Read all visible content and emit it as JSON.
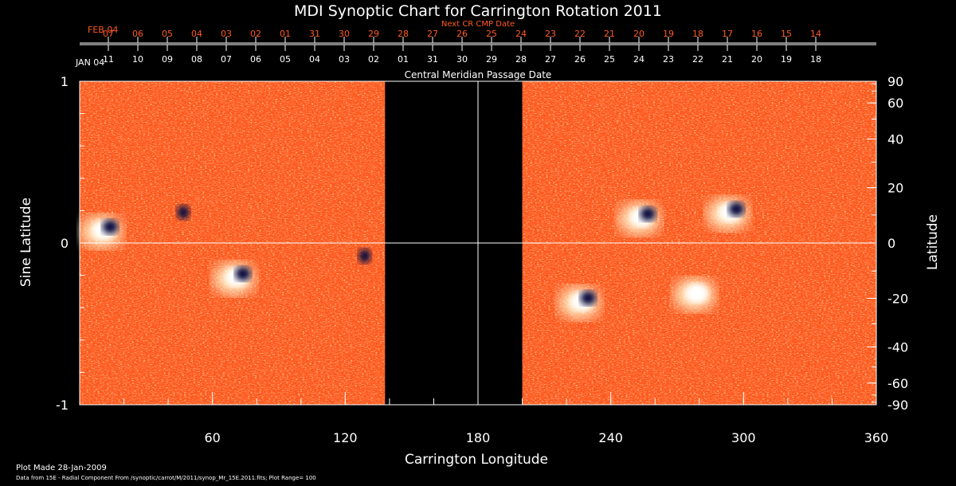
{
  "chart_data": {
    "type": "heatmap",
    "title": "MDI Synoptic Chart for Carrington Rotation 2011",
    "xlabel": "Carrington Longitude",
    "ylabel_left": "Sine Latitude",
    "ylabel_right": "Latitude",
    "xlim": [
      0,
      360
    ],
    "ylim": [
      -1,
      1
    ],
    "x_ticks": [
      60,
      120,
      180,
      240,
      300,
      360
    ],
    "y_ticks_left": [
      -1,
      0,
      1
    ],
    "y_ticks_right": [
      90,
      60,
      40,
      20,
      0,
      -20,
      -40,
      -60,
      -90
    ],
    "x_minor_ticks": [
      20,
      40,
      60,
      80,
      100,
      120,
      140,
      160,
      180,
      200,
      220,
      240,
      260,
      280,
      300,
      320,
      340,
      360
    ],
    "gridlines": {
      "x": [
        180
      ],
      "y": [
        0
      ]
    },
    "data_gaps": [
      {
        "from": 138,
        "to": 200
      }
    ],
    "colors": {
      "background": "#ff5a1f",
      "positive": "#fff6d0",
      "negative": "#101040"
    },
    "active_regions": [
      {
        "lon": 12,
        "sinlat": 0.09,
        "polarity": "mixed"
      },
      {
        "lon": 45,
        "sinlat": 0.18,
        "polarity": "negative"
      },
      {
        "lon": 72,
        "sinlat": -0.2,
        "polarity": "mixed"
      },
      {
        "lon": 127,
        "sinlat": -0.09,
        "polarity": "negative"
      },
      {
        "lon": 255,
        "sinlat": 0.17,
        "polarity": "mixed"
      },
      {
        "lon": 295,
        "sinlat": 0.2,
        "polarity": "mixed"
      },
      {
        "lon": 280,
        "sinlat": -0.3,
        "polarity": "positive"
      },
      {
        "lon": 228,
        "sinlat": -0.35,
        "polarity": "mixed"
      }
    ],
    "top_axis_label": "Central Meridian Passage Date",
    "next_cr_label": "Next CR CMP Date",
    "cmp_dates": {
      "start_label": "JAN 04",
      "days": [
        "11",
        "10",
        "09",
        "08",
        "07",
        "06",
        "05",
        "04",
        "03",
        "02",
        "01",
        "31",
        "30",
        "29",
        "28",
        "27",
        "26",
        "25",
        "24",
        "23",
        "22",
        "21",
        "20",
        "19",
        "18"
      ]
    },
    "next_cmp_dates": {
      "start_label": "FEB 04",
      "days": [
        "07",
        "06",
        "05",
        "04",
        "03",
        "02",
        "01",
        "31",
        "30",
        "29",
        "28",
        "27",
        "26",
        "25",
        "24",
        "23",
        "22",
        "21",
        "20",
        "19",
        "18",
        "17",
        "16",
        "15",
        "14"
      ]
    }
  },
  "footer": {
    "plot_made": "Plot Made 28-Jan-2009",
    "data_source": "Data from 15E - Radial Component From /synoptic/carrot/M/2011/synop_Mr_15E.2011.fits; Plot Range= 100"
  }
}
